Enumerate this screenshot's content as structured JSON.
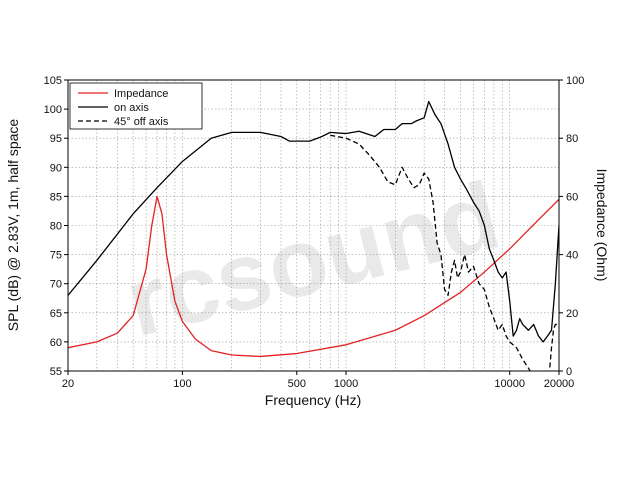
{
  "chart_data": {
    "type": "line",
    "xlabel": "Frequency (Hz)",
    "ylabel": "SPL (dB) @ 2.83V, 1m, half space",
    "y2label": "Impedance (Ohm)",
    "xscale": "log",
    "xlim": [
      20,
      20000
    ],
    "ylim": [
      55,
      105
    ],
    "y2lim": [
      0,
      100
    ],
    "grid": true,
    "legend_position": "top-left",
    "watermark": "rcsound",
    "x_ticks": [
      20,
      100,
      500,
      1000,
      10000,
      20000
    ],
    "x_tick_labels": [
      "20",
      "100",
      "500",
      "1000",
      "10000",
      "20000"
    ],
    "y_ticks": [
      55,
      60,
      65,
      70,
      75,
      80,
      85,
      90,
      95,
      100,
      105
    ],
    "y_tick_labels": [
      "55",
      "60",
      "65",
      "70",
      "75",
      "80",
      "85",
      "90",
      "95",
      "100",
      "105"
    ],
    "y2_ticks": [
      0,
      20,
      40,
      60,
      80,
      100
    ],
    "y2_tick_labels": [
      "0",
      "20",
      "40",
      "60",
      "80",
      "100"
    ],
    "series": [
      {
        "name": "Impedance",
        "axis": "right",
        "color": "#e32222",
        "dash": "solid",
        "x": [
          20,
          30,
          40,
          50,
          60,
          65,
          70,
          75,
          80,
          90,
          100,
          120,
          150,
          200,
          300,
          500,
          1000,
          2000,
          3000,
          5000,
          7000,
          10000,
          15000,
          20000
        ],
        "y": [
          8,
          10,
          13,
          19,
          35,
          50,
          60,
          54,
          40,
          24,
          17,
          11,
          7,
          5.5,
          5,
          6,
          9,
          14,
          19,
          27,
          34,
          42,
          52,
          59
        ]
      },
      {
        "name": "on axis",
        "axis": "left",
        "color": "#000000",
        "dash": "solid",
        "x": [
          20,
          30,
          40,
          50,
          70,
          100,
          150,
          200,
          300,
          400,
          450,
          500,
          600,
          700,
          800,
          1000,
          1200,
          1500,
          1700,
          2000,
          2200,
          2500,
          2700,
          3000,
          3200,
          3500,
          3800,
          4200,
          4600,
          5000,
          5500,
          6000,
          6500,
          7000,
          7500,
          8000,
          8500,
          9000,
          9500,
          10000,
          10500,
          11000,
          11500,
          12000,
          13000,
          14000,
          15000,
          16000,
          17000,
          18000,
          19000,
          20000
        ],
        "y": [
          68,
          74,
          78.5,
          82,
          86.5,
          91,
          95,
          96,
          96,
          95.3,
          94.5,
          94.5,
          94.5,
          95.2,
          96,
          95.8,
          96.2,
          95.3,
          96.5,
          96.5,
          97.5,
          97.5,
          98,
          98.5,
          101.3,
          99,
          97.5,
          94,
          90,
          88,
          86,
          84,
          82.5,
          80,
          76,
          74,
          72,
          71,
          72,
          67,
          61,
          62,
          64,
          63,
          62,
          63,
          61,
          60,
          61,
          62,
          70,
          80
        ]
      },
      {
        "name": "45° off axis",
        "axis": "left",
        "color": "#000000",
        "dash": "dashed",
        "x": [
          800,
          1000,
          1200,
          1400,
          1600,
          1800,
          2000,
          2200,
          2400,
          2600,
          2800,
          3000,
          3200,
          3400,
          3600,
          3800,
          4000,
          4200,
          4400,
          4600,
          4800,
          5000,
          5300,
          5600,
          6000,
          6500,
          7000,
          7500,
          8000,
          8500,
          9000,
          9500,
          10000,
          11000,
          12000,
          13000,
          14000,
          15000,
          16000,
          17000,
          17500,
          18000,
          18500,
          19000,
          20000
        ],
        "y": [
          95.5,
          95,
          94,
          92,
          90,
          87.5,
          87,
          90,
          88,
          86.5,
          87,
          89,
          88,
          84,
          77,
          75,
          69,
          68,
          72,
          74,
          71,
          72,
          75,
          72,
          73,
          70,
          69,
          66,
          64,
          62,
          63,
          61,
          60,
          59,
          57,
          55.5,
          54,
          53,
          52,
          54,
          55,
          59,
          62,
          63,
          63
        ]
      }
    ]
  }
}
